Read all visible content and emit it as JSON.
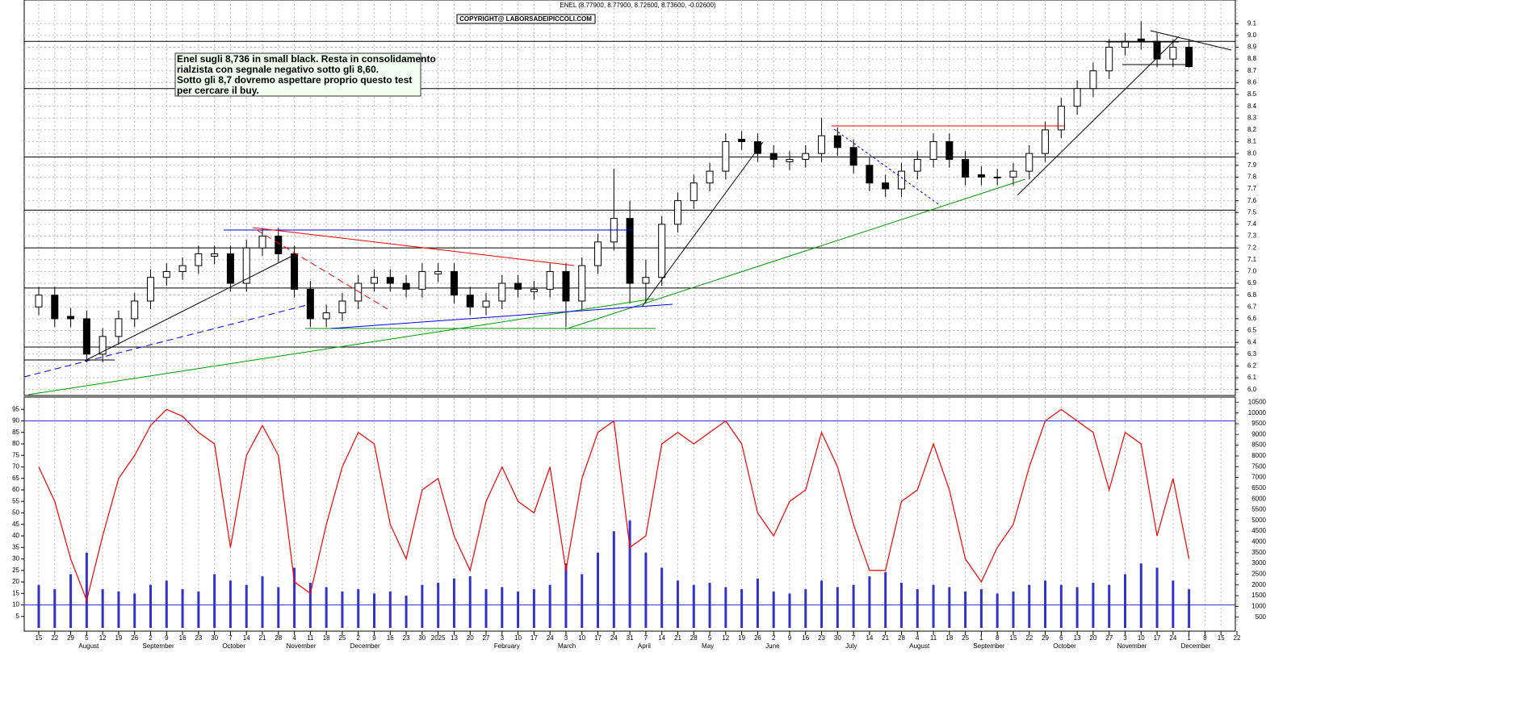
{
  "chart_data": {
    "type": "candlestick",
    "title": "ENEL (8.77900, 8.77900, 8.72600, 8.73600, -0.02600)",
    "copyright": "COPYRIGHT@ LABORSADEIPICCOLI.COM",
    "annotation": [
      "Enel sugli 8,736 in small black.  Resta in consolidamento",
      "rialzista con segnale negativo sotto gli 8,60.",
      "Sotto gli 8,7 dovremo aspettare proprio questo test",
      "per cercare il buy."
    ],
    "categories": [
      "15",
      "22",
      "29",
      "5",
      "12",
      "19",
      "26",
      "2",
      "9",
      "16",
      "23",
      "30",
      "7",
      "14",
      "21",
      "28",
      "4",
      "11",
      "18",
      "25",
      "2",
      "9",
      "16",
      "23",
      "30",
      "2025",
      "13",
      "20",
      "27",
      "3",
      "10",
      "17",
      "24",
      "3",
      "10",
      "17",
      "24",
      "31",
      "7",
      "14",
      "21",
      "28",
      "5",
      "12",
      "19",
      "26",
      "2",
      "9",
      "16",
      "23",
      "30",
      "7",
      "14",
      "21",
      "28",
      "4",
      "11",
      "18",
      "25",
      "1",
      "8",
      "15",
      "22",
      "29",
      "6",
      "13",
      "20",
      "27",
      "3",
      "10",
      "17",
      "24",
      "1",
      "8",
      "15",
      "22"
    ],
    "month_labels": [
      null,
      null,
      null,
      "August",
      null,
      null,
      null,
      "September",
      null,
      null,
      null,
      null,
      "October",
      null,
      null,
      null,
      "November",
      null,
      null,
      null,
      "December",
      null,
      null,
      null,
      null,
      null,
      null,
      null,
      null,
      "February",
      null,
      null,
      null,
      "March",
      null,
      null,
      null,
      null,
      "April",
      null,
      null,
      null,
      "May",
      null,
      null,
      null,
      "June",
      null,
      null,
      null,
      null,
      "July",
      null,
      null,
      null,
      "August",
      null,
      null,
      null,
      "September",
      null,
      null,
      null,
      null,
      "October",
      null,
      null,
      null,
      "November",
      null,
      null,
      null,
      "December",
      null,
      null,
      null
    ],
    "open": [
      6.7,
      6.8,
      6.62,
      6.6,
      6.3,
      6.45,
      6.6,
      6.75,
      6.95,
      7.0,
      7.05,
      7.13,
      7.15,
      6.9,
      7.2,
      7.3,
      7.15,
      6.85,
      6.6,
      6.65,
      6.75,
      6.9,
      6.95,
      6.9,
      6.85,
      6.98,
      7.0,
      6.8,
      6.7,
      6.75,
      6.9,
      6.83,
      6.85,
      7.0,
      6.75,
      7.05,
      7.25,
      7.45,
      6.9,
      6.95,
      7.4,
      7.6,
      7.75,
      7.85,
      8.12,
      8.1,
      8.0,
      7.93,
      7.95,
      8.0,
      8.15,
      8.05,
      7.9,
      7.75,
      7.7,
      7.85,
      7.95,
      8.1,
      7.95,
      7.82,
      7.8,
      7.8,
      7.85,
      8.0,
      8.2,
      8.4,
      8.55,
      8.7,
      8.9,
      8.97,
      8.95,
      8.8,
      8.9,
      null,
      null,
      null
    ],
    "high": [
      6.87,
      6.87,
      6.69,
      6.67,
      6.52,
      6.67,
      6.82,
      7.02,
      7.07,
      7.12,
      7.22,
      7.22,
      7.22,
      7.27,
      7.37,
      7.37,
      7.22,
      6.92,
      6.72,
      6.82,
      6.97,
      7.02,
      7.02,
      6.97,
      7.07,
      7.07,
      7.07,
      6.87,
      6.82,
      6.97,
      6.97,
      6.92,
      7.07,
      7.07,
      7.12,
      7.32,
      7.87,
      7.6,
      7.1,
      7.47,
      7.67,
      7.82,
      7.92,
      8.17,
      8.19,
      8.17,
      8.07,
      8.02,
      8.07,
      8.3,
      8.22,
      8.12,
      7.97,
      7.82,
      7.92,
      8.02,
      8.17,
      8.17,
      8.02,
      7.89,
      7.87,
      7.92,
      8.07,
      8.27,
      8.47,
      8.62,
      8.77,
      8.97,
      9.02,
      9.12,
      9.02,
      8.97,
      8.97,
      null,
      null,
      null
    ],
    "low": [
      6.63,
      6.53,
      6.53,
      6.23,
      6.23,
      6.38,
      6.53,
      6.68,
      6.88,
      6.93,
      6.98,
      7.06,
      6.83,
      6.83,
      7.13,
      7.08,
      6.78,
      6.53,
      6.53,
      6.58,
      6.68,
      6.83,
      6.83,
      6.78,
      6.78,
      6.91,
      6.73,
      6.63,
      6.63,
      6.68,
      6.78,
      6.76,
      6.78,
      6.53,
      6.68,
      6.98,
      7.18,
      6.73,
      6.73,
      6.88,
      7.33,
      7.53,
      7.68,
      7.78,
      8.03,
      7.93,
      7.88,
      7.86,
      7.88,
      7.93,
      7.98,
      7.83,
      7.68,
      7.63,
      7.63,
      7.78,
      7.88,
      7.88,
      7.73,
      7.73,
      7.73,
      7.73,
      7.78,
      7.93,
      8.13,
      8.33,
      8.48,
      8.63,
      8.83,
      8.88,
      8.73,
      8.73,
      8.726,
      null,
      null,
      null
    ],
    "close": [
      6.8,
      6.6,
      6.6,
      6.3,
      6.45,
      6.6,
      6.75,
      6.95,
      7.0,
      7.05,
      7.15,
      7.15,
      6.9,
      7.2,
      7.3,
      7.15,
      6.85,
      6.6,
      6.65,
      6.75,
      6.9,
      6.95,
      6.9,
      6.85,
      7.0,
      7.0,
      6.8,
      6.7,
      6.75,
      6.9,
      6.85,
      6.85,
      7.0,
      6.75,
      7.05,
      7.25,
      7.45,
      6.9,
      6.95,
      7.4,
      7.6,
      7.75,
      7.85,
      8.1,
      8.1,
      8.0,
      7.95,
      7.95,
      8.0,
      8.15,
      8.05,
      7.9,
      7.75,
      7.7,
      7.85,
      7.95,
      8.1,
      7.95,
      7.8,
      7.8,
      7.8,
      7.85,
      8.0,
      8.2,
      8.4,
      8.55,
      8.7,
      8.9,
      8.95,
      8.95,
      8.8,
      8.9,
      8.736,
      null,
      null,
      null
    ],
    "oscillator": {
      "color": "#ff0000",
      "values": [
        70,
        55,
        30,
        12,
        40,
        65,
        75,
        88,
        95,
        92,
        85,
        80,
        35,
        75,
        88,
        75,
        20,
        15,
        45,
        70,
        85,
        80,
        45,
        30,
        60,
        65,
        40,
        25,
        55,
        70,
        55,
        50,
        70,
        25,
        65,
        85,
        90,
        35,
        40,
        80,
        85,
        80,
        85,
        90,
        80,
        50,
        40,
        55,
        60,
        85,
        70,
        45,
        25,
        25,
        55,
        60,
        80,
        60,
        30,
        20,
        35,
        45,
        70,
        90,
        95,
        90,
        85,
        60,
        85,
        80,
        40,
        65,
        30,
        null,
        null,
        null
      ]
    },
    "volume": {
      "color": "#3333cc",
      "axis": "y2",
      "values": [
        2000,
        1800,
        2500,
        3500,
        1800,
        1700,
        1600,
        2000,
        2200,
        1800,
        1700,
        2500,
        2200,
        2000,
        2400,
        1900,
        2800,
        2100,
        1900,
        1700,
        1800,
        1600,
        1700,
        1500,
        2000,
        2100,
        2300,
        2400,
        1800,
        1900,
        1700,
        1800,
        2000,
        3000,
        2500,
        3500,
        4500,
        5000,
        3500,
        2800,
        2200,
        2000,
        2100,
        1900,
        1800,
        2300,
        1700,
        1600,
        1800,
        2200,
        1900,
        2000,
        2400,
        2600,
        2100,
        1800,
        2000,
        1900,
        1700,
        1800,
        1600,
        1700,
        2000,
        2200,
        2000,
        1900,
        2100,
        2000,
        2500,
        3000,
        2800,
        2200,
        1800,
        null,
        null,
        null
      ]
    },
    "levels": [
      8.95,
      8.55,
      7.97,
      7.52,
      7.2,
      6.86,
      6.36
    ],
    "osc_levels": [
      90,
      10
    ],
    "ylim": [
      5.95,
      9.3
    ],
    "yticks": [
      {
        "value": 6,
        "label": "6.0"
      },
      6.1,
      6.2,
      6.3,
      6.4,
      6.5,
      6.6,
      6.7,
      6.8,
      6.9,
      {
        "value": 7,
        "label": "7.0"
      },
      7.1,
      7.2,
      7.3,
      7.4,
      7.5,
      7.6,
      7.7,
      7.8,
      7.9,
      {
        "value": 8,
        "label": "8.0"
      },
      8.1,
      8.2,
      8.3,
      8.4,
      8.5,
      8.6,
      8.7,
      8.8,
      8.9,
      {
        "value": 9,
        "label": "9.0"
      },
      9.1
    ],
    "osc_ylim": [
      0,
      100
    ],
    "osc_ticks": [
      5,
      10,
      15,
      20,
      25,
      30,
      35,
      40,
      45,
      50,
      55,
      60,
      65,
      70,
      75,
      80,
      85,
      90,
      95
    ],
    "y2lim": [
      0,
      10700
    ],
    "y2ticks": [
      500,
      1000,
      1500,
      2000,
      2500,
      3000,
      3500,
      4000,
      4500,
      5000,
      5500,
      6000,
      6500,
      7000,
      7500,
      8000,
      8500,
      9000,
      9500,
      10000,
      10500
    ],
    "grid": true
  }
}
